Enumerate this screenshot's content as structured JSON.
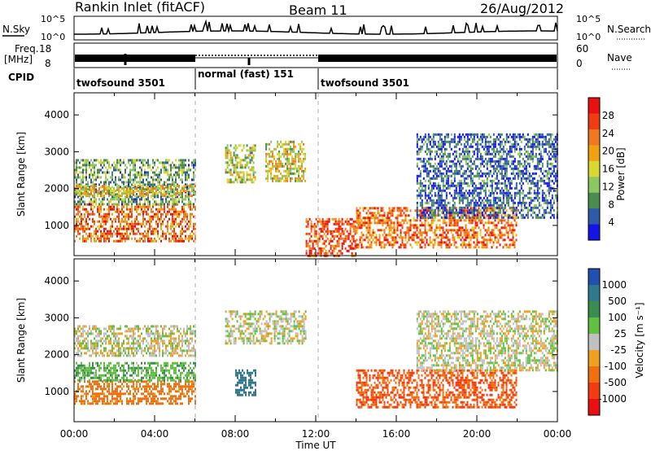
{
  "header": {
    "station": "Rankin Inlet (fitACF)",
    "beam": "Beam 11",
    "date": "26/Aug/2012"
  },
  "noise_panel": {
    "left_label": "N.Sky",
    "right_label": "N.Search",
    "ytick_top": "10^5",
    "ytick_bottom": "10^0"
  },
  "freq_panel": {
    "label_line1": "Freq.",
    "label_line2": "[MHz]",
    "ytick_top": "18",
    "ytick_bottom": "8",
    "right_ytick_top": "60",
    "right_ytick_bottom": "0",
    "right_label": "Nave"
  },
  "cpid": {
    "label": "CPID",
    "segments": [
      {
        "name": "twofsound 3501",
        "start": 0,
        "end": 6
      },
      {
        "name": "normal (fast) 151",
        "start": 6,
        "end": 12
      },
      {
        "name": "twofsound 3501",
        "start": 12,
        "end": 24
      }
    ]
  },
  "axes": {
    "xlabel": "Time UT",
    "xticks": [
      "00:00",
      "04:00",
      "08:00",
      "12:00",
      "16:00",
      "20:00",
      "00:00"
    ],
    "xrange_hours": [
      0,
      24
    ],
    "ylabel": "Slant Range [km]",
    "yticks": [
      "1000",
      "2000",
      "3000",
      "4000"
    ],
    "yrange_km": [
      180,
      4600
    ]
  },
  "power_colorbar": {
    "label": "Power [dB]",
    "ticks": [
      "28",
      "24",
      "20",
      "16",
      "12",
      "8",
      "4"
    ],
    "colors": [
      "#e81010",
      "#f03c10",
      "#f07820",
      "#f0a010",
      "#d8d830",
      "#8cc860",
      "#4a8c50",
      "#2e5aa8",
      "#1414e8"
    ]
  },
  "velocity_colorbar": {
    "label": "Velocity [m s⁻¹]",
    "ticks": [
      "1000",
      "500",
      "100",
      "25",
      "-25",
      "-100",
      "-500",
      "-1000"
    ],
    "colors": [
      "#2050b0",
      "#2e7a8c",
      "#3c8c50",
      "#60c040",
      "#c0c0c0",
      "#f0a020",
      "#f07010",
      "#f03c10",
      "#e81010"
    ]
  },
  "chart_data": {
    "type": "heatmap",
    "title": "Rankin Inlet (fitACF)",
    "xlabel": "Time UT",
    "ylabel": "Slant Range [km]",
    "xlim": [
      0,
      24
    ],
    "ylim": [
      180,
      4600
    ],
    "panels": [
      {
        "name": "Power",
        "label": "Power [dB]",
        "colorbar_ticks": [
          4,
          8,
          12,
          16,
          20,
          24,
          28
        ],
        "regions": [
          {
            "t0": 0,
            "t1": 6,
            "r0": 600,
            "r1": 1600,
            "value": 24
          },
          {
            "t0": 0,
            "t1": 6,
            "r0": 1600,
            "r1": 2800,
            "value": 10
          },
          {
            "t0": 0,
            "t1": 6,
            "r0": 1800,
            "r1": 2100,
            "value": 18
          },
          {
            "t0": 7.5,
            "t1": 9,
            "r0": 2200,
            "r1": 3200,
            "value": 14
          },
          {
            "t0": 9.5,
            "t1": 11.5,
            "r0": 2200,
            "r1": 3300,
            "value": 16
          },
          {
            "t0": 11.5,
            "t1": 14,
            "r0": 200,
            "r1": 1200,
            "value": 26
          },
          {
            "t0": 14,
            "t1": 22,
            "r0": 400,
            "r1": 1500,
            "value": 24
          },
          {
            "t0": 17,
            "t1": 24,
            "r0": 1200,
            "r1": 3500,
            "value": 6
          }
        ]
      },
      {
        "name": "Velocity",
        "label": "Velocity [m s⁻¹]",
        "colorbar_ticks": [
          -1000,
          -500,
          -100,
          -25,
          25,
          100,
          500,
          1000
        ],
        "regions": [
          {
            "t0": 0,
            "t1": 6,
            "r0": 700,
            "r1": 1300,
            "value": -150
          },
          {
            "t0": 0,
            "t1": 6,
            "r0": 1300,
            "r1": 1800,
            "value": 80
          },
          {
            "t0": 0,
            "t1": 6,
            "r0": 2000,
            "r1": 2800,
            "value": 0
          },
          {
            "t0": 8,
            "t1": 9,
            "r0": 900,
            "r1": 1600,
            "value": 700
          },
          {
            "t0": 7.5,
            "t1": 11.5,
            "r0": 2300,
            "r1": 3200,
            "value": 0
          },
          {
            "t0": 14,
            "t1": 22,
            "r0": 600,
            "r1": 1600,
            "value": -500
          },
          {
            "t0": 17,
            "t1": 24,
            "r0": 1600,
            "r1": 3200,
            "value": 0
          }
        ]
      }
    ],
    "noise_sky_range": [
      1,
      100000
    ],
    "frequency_mhz": [
      10.5,
      11.5
    ],
    "nave_range": [
      0,
      60
    ]
  }
}
